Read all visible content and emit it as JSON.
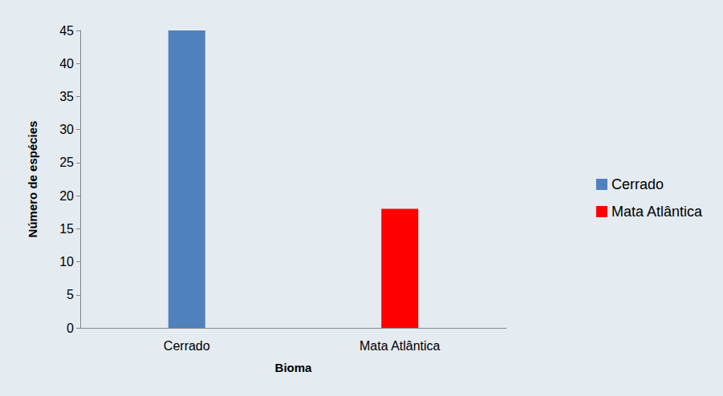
{
  "chart_data": {
    "type": "bar",
    "x_label": "Bioma",
    "y_label": "Número de espécies",
    "categories": [
      "Cerrado",
      "Mata Atlântica"
    ],
    "values": [
      45,
      18
    ],
    "colors": [
      "#4f81bd",
      "#ff0000"
    ],
    "ylim": [
      0,
      45
    ],
    "yticks": [
      0,
      5,
      10,
      15,
      20,
      25,
      30,
      35,
      40,
      45
    ],
    "grid": false,
    "legend": "right",
    "data_labels": false
  }
}
